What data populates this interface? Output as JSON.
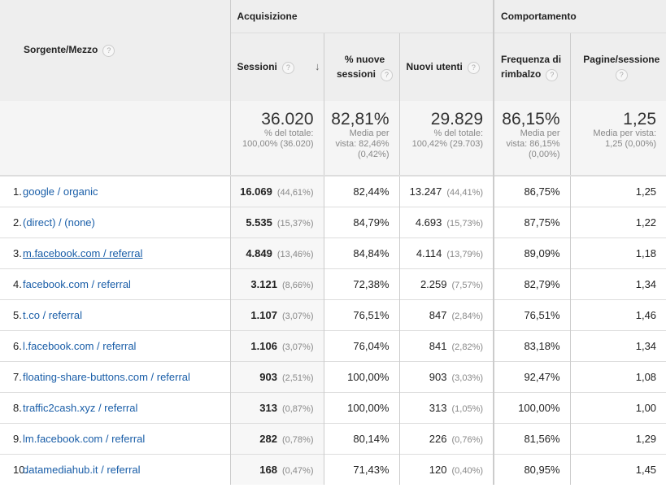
{
  "headers": {
    "source": "Sorgente/Mezzo",
    "acquisition": "Acquisizione",
    "behavior": "Comportamento",
    "sessions": "Sessioni",
    "new_sessions_1": "% nuove",
    "new_sessions_2": "sessioni",
    "new_users": "Nuovi utenti",
    "bounce_1": "Frequenza di",
    "bounce_2": "rimbalzo",
    "pages": "Pagine/sessione",
    "help": "?",
    "sort_arrow": "↓"
  },
  "totals": {
    "sessions": {
      "value": "36.020",
      "l1": "% del totale:",
      "l2": "100,00% (36.020)",
      "l3": ""
    },
    "new_sessions": {
      "value": "82,81%",
      "l1": "Media per",
      "l2": "vista: 82,46%",
      "l3": "(0,42%)"
    },
    "new_users": {
      "value": "29.829",
      "l1": "% del totale:",
      "l2": "100,42% (29.703)",
      "l3": ""
    },
    "bounce": {
      "value": "86,15%",
      "l1": "Media per",
      "l2": "vista: 86,15%",
      "l3": "(0,00%)"
    },
    "pages": {
      "value": "1,25",
      "l1": "Media per vista:",
      "l2": "1,25 (0,00%)",
      "l3": ""
    }
  },
  "rows": [
    {
      "n": "1.",
      "source": "google / organic",
      "sessions": "16.069",
      "sessions_pct": "(44,61%)",
      "new_sessions": "82,44%",
      "new_users": "13.247",
      "new_users_pct": "(44,41%)",
      "bounce": "86,75%",
      "pages": "1,25"
    },
    {
      "n": "2.",
      "source": "(direct) / (none)",
      "sessions": "5.535",
      "sessions_pct": "(15,37%)",
      "new_sessions": "84,79%",
      "new_users": "4.693",
      "new_users_pct": "(15,73%)",
      "bounce": "87,75%",
      "pages": "1,22"
    },
    {
      "n": "3.",
      "source": "m.facebook.com / referral",
      "sessions": "4.849",
      "sessions_pct": "(13,46%)",
      "new_sessions": "84,84%",
      "new_users": "4.114",
      "new_users_pct": "(13,79%)",
      "bounce": "89,09%",
      "pages": "1,18"
    },
    {
      "n": "4.",
      "source": "facebook.com / referral",
      "sessions": "3.121",
      "sessions_pct": "(8,66%)",
      "new_sessions": "72,38%",
      "new_users": "2.259",
      "new_users_pct": "(7,57%)",
      "bounce": "82,79%",
      "pages": "1,34"
    },
    {
      "n": "5.",
      "source": "t.co / referral",
      "sessions": "1.107",
      "sessions_pct": "(3,07%)",
      "new_sessions": "76,51%",
      "new_users": "847",
      "new_users_pct": "(2,84%)",
      "bounce": "76,51%",
      "pages": "1,46"
    },
    {
      "n": "6.",
      "source": "l.facebook.com / referral",
      "sessions": "1.106",
      "sessions_pct": "(3,07%)",
      "new_sessions": "76,04%",
      "new_users": "841",
      "new_users_pct": "(2,82%)",
      "bounce": "83,18%",
      "pages": "1,34"
    },
    {
      "n": "7.",
      "source": "floating-share-buttons.com / referral",
      "sessions": "903",
      "sessions_pct": "(2,51%)",
      "new_sessions": "100,00%",
      "new_users": "903",
      "new_users_pct": "(3,03%)",
      "bounce": "92,47%",
      "pages": "1,08"
    },
    {
      "n": "8.",
      "source": "traffic2cash.xyz / referral",
      "sessions": "313",
      "sessions_pct": "(0,87%)",
      "new_sessions": "100,00%",
      "new_users": "313",
      "new_users_pct": "(1,05%)",
      "bounce": "100,00%",
      "pages": "1,00"
    },
    {
      "n": "9.",
      "source": "lm.facebook.com / referral",
      "sessions": "282",
      "sessions_pct": "(0,78%)",
      "new_sessions": "80,14%",
      "new_users": "226",
      "new_users_pct": "(0,76%)",
      "bounce": "81,56%",
      "pages": "1,29"
    },
    {
      "n": "10.",
      "source": "datamediahub.it / referral",
      "sessions": "168",
      "sessions_pct": "(0,47%)",
      "new_sessions": "71,43%",
      "new_users": "120",
      "new_users_pct": "(0,40%)",
      "bounce": "80,95%",
      "pages": "1,45"
    }
  ]
}
